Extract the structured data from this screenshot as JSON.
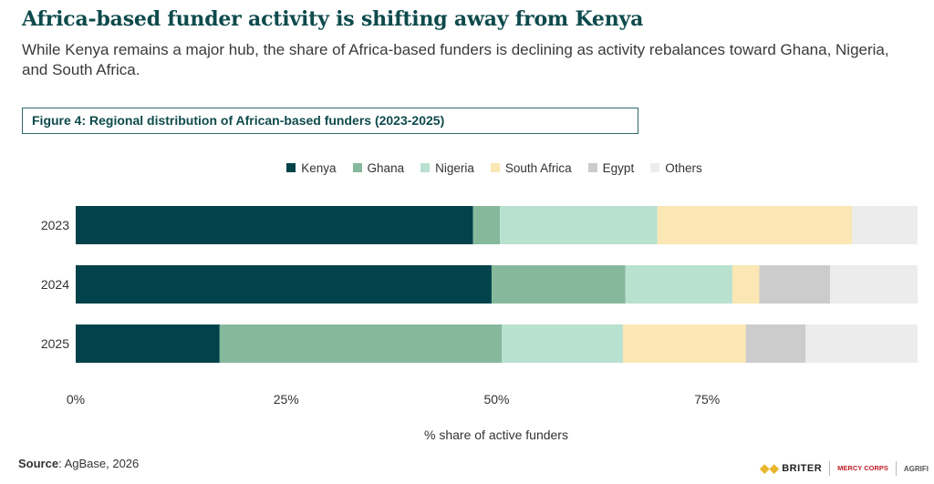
{
  "headline": "Africa-based funder activity is shifting away from Kenya",
  "subhead": "While Kenya remains a major hub, the share of Africa-based funders is declining as activity rebalances toward Ghana, Nigeria, and South Africa.",
  "figure_title": "Figure 4: Regional distribution of African-based funders (2023-2025)",
  "source_label": "Source",
  "source_text": ": AgBase, 2026",
  "logos": {
    "briter": "BRITER",
    "mercy": "MERCY CORPS",
    "agrifi": "AGRIFI"
  },
  "chart_data": {
    "type": "bar",
    "orientation": "horizontal",
    "stacked": true,
    "categories": [
      "2023",
      "2024",
      "2025"
    ],
    "series": [
      {
        "name": "Kenya",
        "color": "#02434b",
        "values": [
          47.2,
          49.4,
          17.1
        ]
      },
      {
        "name": "Ghana",
        "color": "#86b89c",
        "values": [
          3.2,
          15.9,
          33.5
        ]
      },
      {
        "name": "Nigeria",
        "color": "#b9e1cf",
        "values": [
          18.7,
          12.7,
          14.4
        ]
      },
      {
        "name": "South Africa",
        "color": "#fbe7b3",
        "values": [
          23.1,
          3.2,
          14.6
        ]
      },
      {
        "name": "Egypt",
        "color": "#cccccc",
        "values": [
          0,
          8.4,
          7.1
        ]
      },
      {
        "name": "Others",
        "color": "#ececec",
        "values": [
          7.8,
          10.4,
          13.3
        ]
      }
    ],
    "xlabel": "% share of active funders",
    "x_ticks": [
      0,
      25,
      50,
      75
    ],
    "x_tick_labels": [
      "0%",
      "25%",
      "50%",
      "75%"
    ],
    "xlim": [
      0,
      100
    ],
    "legend_position": "top-center",
    "grid": false
  }
}
